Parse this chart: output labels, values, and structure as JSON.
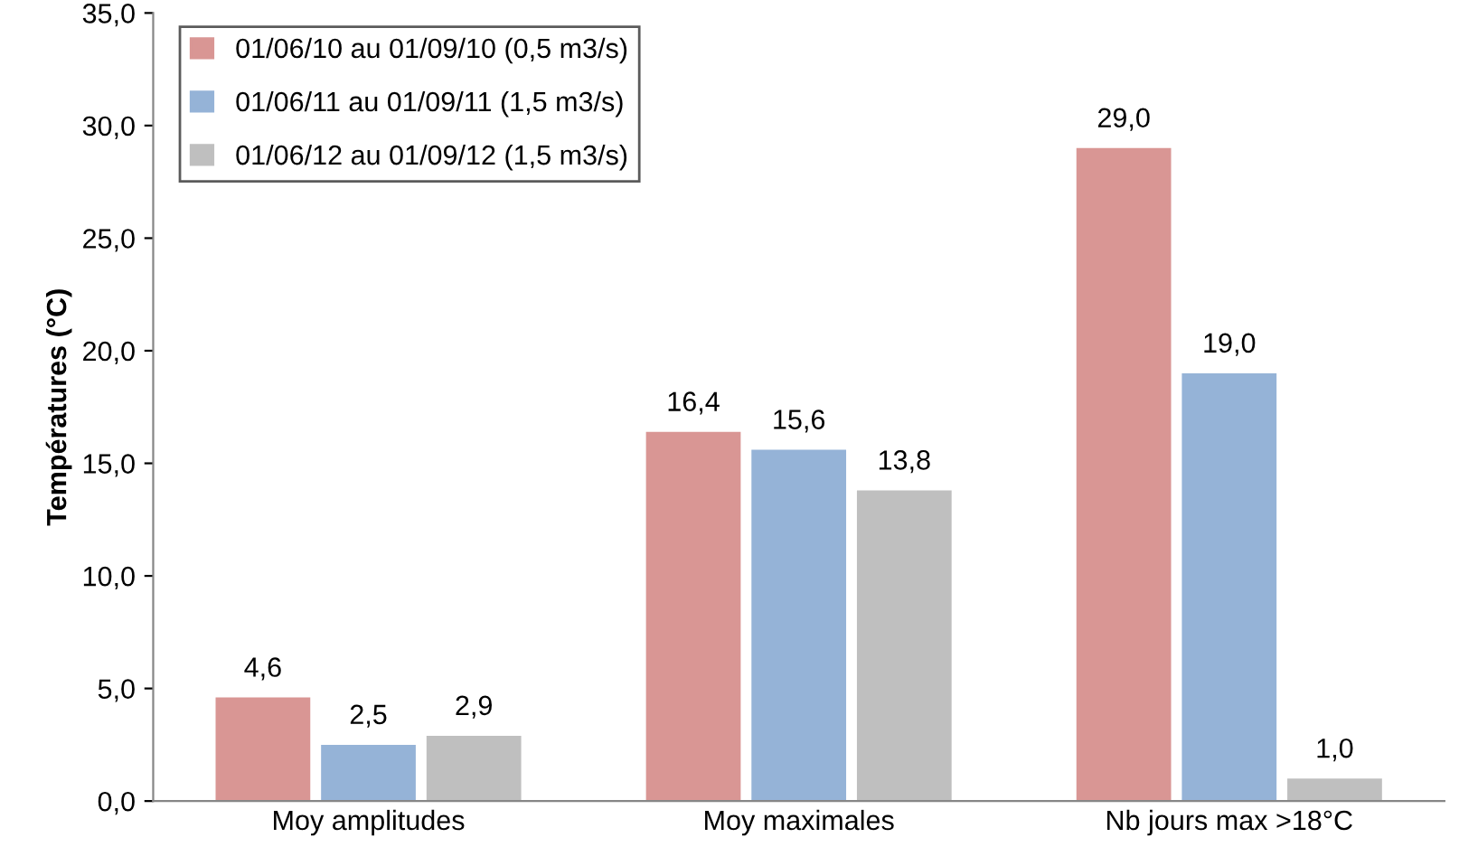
{
  "chart_data": {
    "type": "bar",
    "ylabel": "Températures (°C)",
    "categories": [
      "Moy amplitudes",
      "Moy maximales",
      "Nb jours max >18°C"
    ],
    "series": [
      {
        "name": "01/06/10 au 01/09/10 (0,5 m3/s)",
        "color": "#d99694",
        "values": [
          4.6,
          16.4,
          29.0
        ],
        "value_labels": [
          "4,6",
          "16,4",
          "29,0"
        ]
      },
      {
        "name": "01/06/11 au 01/09/11 (1,5 m3/s)",
        "color": "#95b3d7",
        "values": [
          2.5,
          15.6,
          19.0
        ],
        "value_labels": [
          "2,5",
          "15,6",
          "19,0"
        ]
      },
      {
        "name": "01/06/12 au 01/09/12 (1,5 m3/s)",
        "color": "#bfbfbf",
        "values": [
          2.9,
          13.8,
          1.0
        ],
        "value_labels": [
          "2,9",
          "13,8",
          "1,0"
        ]
      }
    ],
    "ylim": [
      0,
      35
    ],
    "yticks": [
      {
        "value": 0,
        "label": "0,0"
      },
      {
        "value": 5,
        "label": "5,0"
      },
      {
        "value": 10,
        "label": "10,0"
      },
      {
        "value": 15,
        "label": "15,0"
      },
      {
        "value": 20,
        "label": "20,0"
      },
      {
        "value": 25,
        "label": "25,0"
      },
      {
        "value": 30,
        "label": "30,0"
      },
      {
        "value": 35,
        "label": "35,0"
      }
    ],
    "grid": false,
    "legend": "top left"
  }
}
